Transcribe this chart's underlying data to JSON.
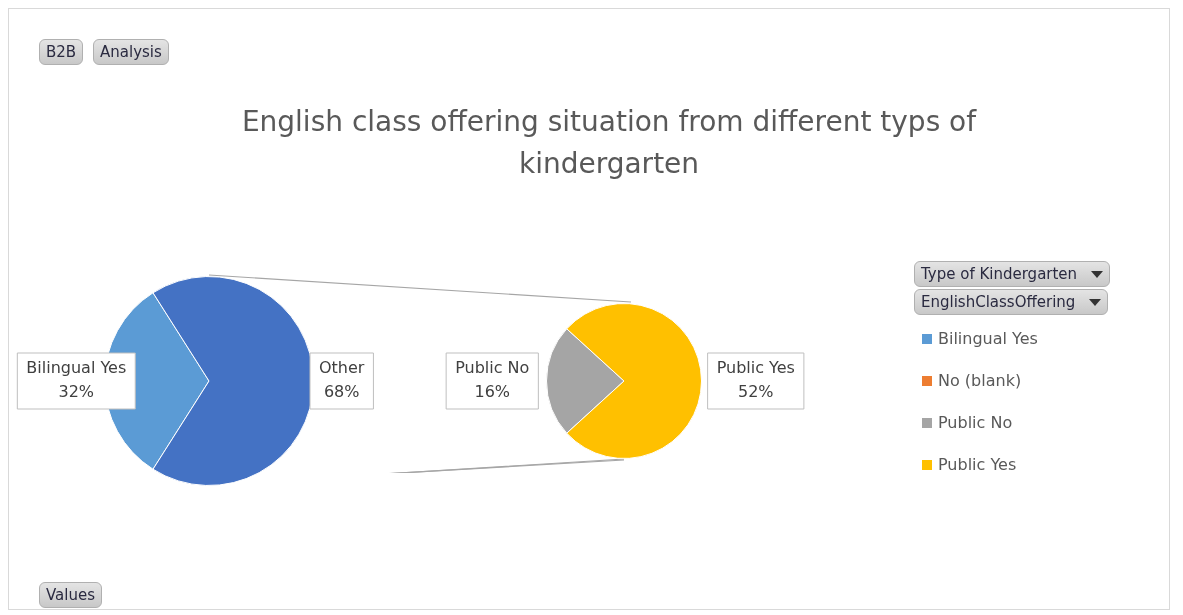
{
  "chart_data": [
    {
      "type": "pie",
      "title": "English class offering situation from different typs of kindergarten",
      "categories": [
        "Bilingual Yes",
        "Other"
      ],
      "values": [
        32,
        68
      ],
      "colors": [
        "#5b9bd5",
        "#4472c4"
      ],
      "value_labels": [
        "32%",
        "68%"
      ],
      "annotations": [
        "B2B",
        "Analysis",
        "Values"
      ]
    },
    {
      "type": "pie",
      "categories": [
        "Bilingual Yes",
        "No (blank)",
        "Public No",
        "Public Yes"
      ],
      "values": [
        null,
        null,
        16,
        52
      ],
      "colors": [
        "#5b9bd5",
        "#ed7d31",
        "#a5a5a5",
        "#ffc000"
      ],
      "value_labels": [
        null,
        null,
        "16%",
        "52%"
      ],
      "legend": "right",
      "legend_title": "Type of Kindergarten",
      "annotations": [
        "EnglishClassOffering"
      ]
    }
  ]
}
